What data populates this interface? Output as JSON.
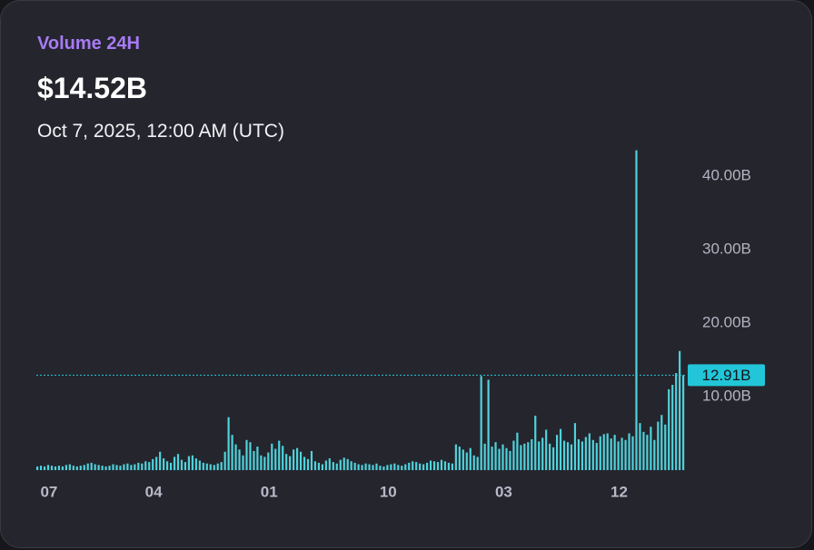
{
  "header": {
    "title": "Volume 24H",
    "value": "$14.52B",
    "date": "Oct 7, 2025, 12:00 AM (UTC)"
  },
  "chart_data": {
    "type": "bar",
    "color": "#4fd3dc",
    "categories": [
      null,
      null,
      null,
      "07",
      null,
      null,
      null,
      null,
      null,
      null,
      null,
      null,
      null,
      null,
      null,
      null,
      null,
      null,
      null,
      null,
      null,
      null,
      null,
      null,
      null,
      null,
      null,
      null,
      null,
      null,
      null,
      null,
      "04",
      null,
      null,
      null,
      null,
      null,
      null,
      null,
      null,
      null,
      null,
      null,
      null,
      null,
      null,
      null,
      null,
      null,
      null,
      null,
      null,
      null,
      null,
      null,
      null,
      null,
      null,
      null,
      null,
      null,
      null,
      null,
      "01",
      null,
      null,
      null,
      null,
      null,
      null,
      null,
      null,
      null,
      null,
      null,
      null,
      null,
      null,
      null,
      null,
      null,
      null,
      null,
      null,
      null,
      null,
      null,
      null,
      null,
      null,
      null,
      null,
      null,
      null,
      null,
      null,
      "10",
      null,
      null,
      null,
      null,
      null,
      null,
      null,
      null,
      null,
      null,
      null,
      null,
      null,
      null,
      null,
      null,
      null,
      null,
      null,
      null,
      null,
      null,
      null,
      null,
      null,
      null,
      null,
      null,
      null,
      null,
      null,
      "03",
      null,
      null,
      null,
      null,
      null,
      null,
      null,
      null,
      null,
      null,
      null,
      null,
      null,
      null,
      null,
      null,
      null,
      null,
      null,
      null,
      null,
      null,
      null,
      null,
      null,
      null,
      null,
      null,
      null,
      null,
      null,
      "12",
      null,
      null,
      null,
      null,
      null,
      null,
      null,
      null,
      null,
      null,
      null,
      null,
      null,
      null,
      null,
      null,
      null,
      null
    ],
    "values": [
      0.5,
      0.6,
      0.5,
      0.7,
      0.6,
      0.5,
      0.6,
      0.5,
      0.7,
      0.8,
      0.6,
      0.5,
      0.6,
      0.7,
      0.9,
      1.0,
      0.8,
      0.7,
      0.6,
      0.5,
      0.6,
      0.8,
      0.7,
      0.6,
      0.8,
      0.9,
      0.7,
      0.8,
      1.0,
      0.9,
      1.2,
      1.1,
      1.5,
      1.8,
      2.5,
      1.6,
      1.2,
      1.0,
      1.8,
      2.2,
      1.4,
      1.1,
      1.9,
      2.0,
      1.6,
      1.3,
      1.0,
      0.9,
      0.8,
      0.7,
      0.9,
      1.1,
      2.5,
      7.2,
      4.8,
      3.5,
      2.8,
      2.0,
      4.1,
      3.8,
      2.6,
      3.2,
      2.0,
      1.8,
      2.4,
      3.6,
      2.9,
      4.0,
      3.3,
      2.2,
      1.9,
      2.8,
      3.0,
      2.5,
      1.8,
      1.5,
      2.6,
      1.2,
      1.0,
      0.8,
      1.3,
      1.6,
      1.1,
      0.9,
      1.4,
      1.7,
      1.5,
      1.2,
      1.0,
      0.8,
      0.7,
      0.9,
      0.8,
      0.7,
      0.9,
      0.6,
      0.5,
      0.7,
      0.8,
      0.9,
      0.7,
      0.6,
      0.8,
      1.0,
      1.2,
      1.1,
      0.9,
      0.8,
      1.0,
      1.3,
      1.2,
      1.1,
      1.4,
      1.2,
      1.0,
      0.9,
      3.5,
      3.2,
      2.8,
      2.4,
      3.0,
      2.0,
      1.8,
      12.8,
      3.6,
      12.3,
      3.2,
      3.8,
      2.9,
      3.5,
      3.0,
      2.6,
      4.0,
      5.1,
      3.4,
      3.6,
      3.8,
      4.2,
      7.4,
      3.9,
      4.4,
      5.5,
      3.6,
      3.1,
      4.8,
      5.6,
      4.0,
      3.8,
      3.5,
      6.4,
      4.2,
      3.9,
      4.5,
      5.0,
      4.1,
      3.7,
      4.6,
      4.9,
      5.0,
      4.3,
      4.8,
      3.9,
      4.4,
      4.1,
      5.0,
      4.6,
      43.5,
      6.4,
      5.2,
      4.8,
      5.9,
      4.1,
      6.6,
      7.5,
      6.2,
      11.0,
      11.6,
      13.2,
      16.2,
      12.91
    ],
    "ylim": [
      0,
      43.5
    ],
    "yticks": [
      {
        "value": 10,
        "label": "10.00B"
      },
      {
        "value": 20,
        "label": "20.00B"
      },
      {
        "value": 30,
        "label": "30.00B"
      },
      {
        "value": 40,
        "label": "40.00B"
      }
    ],
    "last_value": 12.91,
    "last_value_label": "12.91B",
    "last_value_color": "#22c6d8"
  }
}
